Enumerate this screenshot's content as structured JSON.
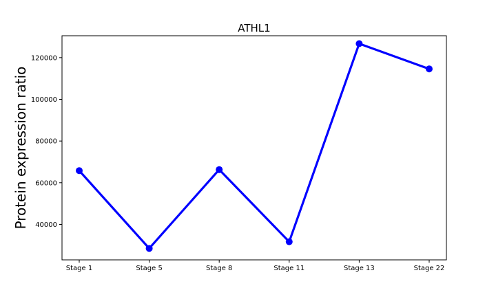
{
  "chart_data": {
    "type": "line",
    "title": "ATHL1",
    "xlabel": "",
    "ylabel": "Protein expression ratio",
    "categories": [
      "Stage 1",
      "Stage 5",
      "Stage 8",
      "Stage 11",
      "Stage 13",
      "Stage 22"
    ],
    "series": [
      {
        "values": [
          65800,
          28500,
          66300,
          31700,
          126700,
          114600
        ],
        "color": "#0000ff"
      }
    ],
    "yticks": [
      40000,
      60000,
      80000,
      100000,
      120000
    ],
    "ytick_labels": [
      "40000",
      "60000",
      "80000",
      "100000",
      "120000"
    ],
    "ylim": [
      23000,
      130500
    ],
    "grid": false,
    "legend": "none"
  }
}
